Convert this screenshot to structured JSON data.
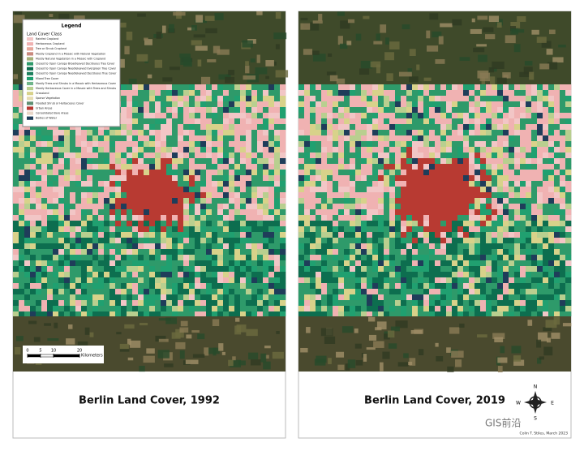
{
  "legend": {
    "title": "Legend",
    "subtitle": "Land Cover Class",
    "items": [
      {
        "label": "Rainfed Cropland",
        "color": "#f2c6c6"
      },
      {
        "label": "Herbaceous Cropland",
        "color": "#f0b2b2"
      },
      {
        "label": "Tree or Shrub Cropland",
        "color": "#e7a89c"
      },
      {
        "label": "Mostly Cropland in a Mosaic with Natural Vegetation",
        "color": "#c98a7e"
      },
      {
        "label": "Mostly Natural Vegetation in a Mosaic with Cropland",
        "color": "#a7b07a"
      },
      {
        "label": "Closed to Open Canopy Broadleaved Deciduous Tree Cover",
        "color": "#2e9a6a"
      },
      {
        "label": "Closed to Open Canopy Needleleaved Evergreen Tree Cover",
        "color": "#0d6e4f"
      },
      {
        "label": "Closed to Open Canopy Needleleaved Deciduous Tree Cover",
        "color": "#1c7f5c"
      },
      {
        "label": "Mixed Tree Cover",
        "color": "#20a070"
      },
      {
        "label": "Mostly Trees and Shrubs in a Mosaic with Herbaceous Cover",
        "color": "#6fb58a"
      },
      {
        "label": "Mostly Herbaceous Cover in a Mosaic with Trees and Shrubs",
        "color": "#b9cf8f"
      },
      {
        "label": "Grassland",
        "color": "#d8d28a"
      },
      {
        "label": "Sparse Vegetation",
        "color": "#e6dcb0"
      },
      {
        "label": "Flooded Shrub or Herbaceous Cover",
        "color": "#5f8f72"
      },
      {
        "label": "Urban Areas",
        "color": "#b83a32"
      },
      {
        "label": "Consolidated Bare Areas",
        "color": "#e8d6c8"
      },
      {
        "label": "Bodies of Water",
        "color": "#1f3d5a"
      }
    ]
  },
  "maps": [
    {
      "title": "Berlin Land Cover, 1992"
    },
    {
      "title": "Berlin Land Cover, 2019"
    }
  ],
  "scale_bar": {
    "ticks": [
      0,
      5,
      10,
      20
    ],
    "unit": "Kilometers"
  },
  "compass": {
    "n": "N",
    "e": "E",
    "s": "S",
    "w": "W"
  },
  "credit": "Colin T. Stiles, March 2023",
  "watermark": "GIS前沿"
}
